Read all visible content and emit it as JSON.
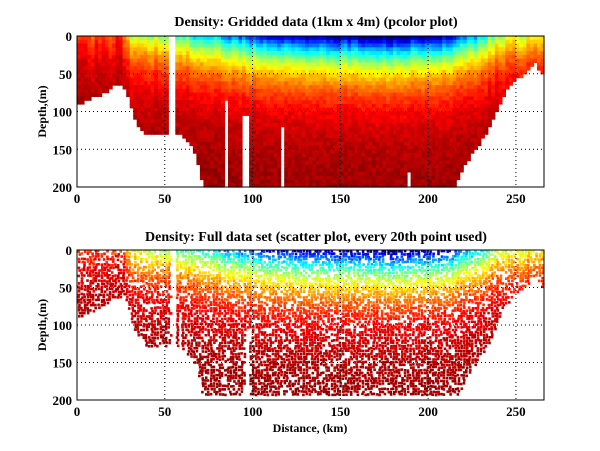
{
  "chart_data": [
    {
      "type": "heatmap",
      "title": "Density: Gridded data (1km x 4m) (pcolor plot)",
      "xlabel": "",
      "ylabel": "Depth,(m)",
      "xlim": [
        0,
        266
      ],
      "ylim": [
        200,
        0
      ],
      "y_reversed": true,
      "xticks": [
        "0",
        "50",
        "100",
        "150",
        "200",
        "250"
      ],
      "yticks": [
        "0",
        "50",
        "100",
        "150",
        "200"
      ],
      "grid": true,
      "colormap": "jet",
      "grid_cell": {
        "distance_km": 1,
        "depth_m": 4
      },
      "bottom_profile": {
        "distance": [
          0,
          5,
          10,
          15,
          20,
          25,
          28,
          30,
          32,
          35,
          40,
          50,
          52,
          60,
          62,
          65,
          68,
          70,
          72,
          215,
          218,
          222,
          228,
          235,
          240,
          245,
          250,
          255,
          258,
          262,
          264,
          266
        ],
        "depth": [
          90,
          85,
          78,
          75,
          65,
          62,
          68,
          85,
          105,
          120,
          128,
          128,
          125,
          130,
          135,
          145,
          160,
          180,
          197,
          197,
          185,
          165,
          145,
          120,
          90,
          70,
          55,
          50,
          38,
          33,
          48,
          48
        ]
      },
      "surface_density_level": {
        "distance": [
          0,
          25,
          30,
          50,
          60,
          75,
          95,
          110,
          130,
          180,
          210,
          225,
          240,
          266
        ],
        "level": [
          0.8,
          0.85,
          0.6,
          0.55,
          0.45,
          0.35,
          0.25,
          0.12,
          0.08,
          0.02,
          0.1,
          0.3,
          0.55,
          0.65
        ]
      },
      "data_gaps": [
        [
          53,
          56,
          0
        ],
        [
          57.5,
          58.5,
          80
        ],
        [
          84,
          85,
          85
        ],
        [
          95,
          98,
          105
        ],
        [
          116,
          117,
          120
        ],
        [
          188,
          189,
          180
        ]
      ]
    },
    {
      "type": "scatter",
      "title": "Density: Full data set (scatter plot, every 20th point used)",
      "xlabel": "Distance, (km)",
      "ylabel": "Depth,(m)",
      "xlim": [
        0,
        266
      ],
      "ylim": [
        200,
        0
      ],
      "y_reversed": true,
      "xticks": [
        "0",
        "50",
        "100",
        "150",
        "200",
        "250"
      ],
      "yticks": [
        "0",
        "50",
        "100",
        "150",
        "200"
      ],
      "grid": true,
      "colormap": "jet",
      "max_sample_depth": 192
    }
  ]
}
